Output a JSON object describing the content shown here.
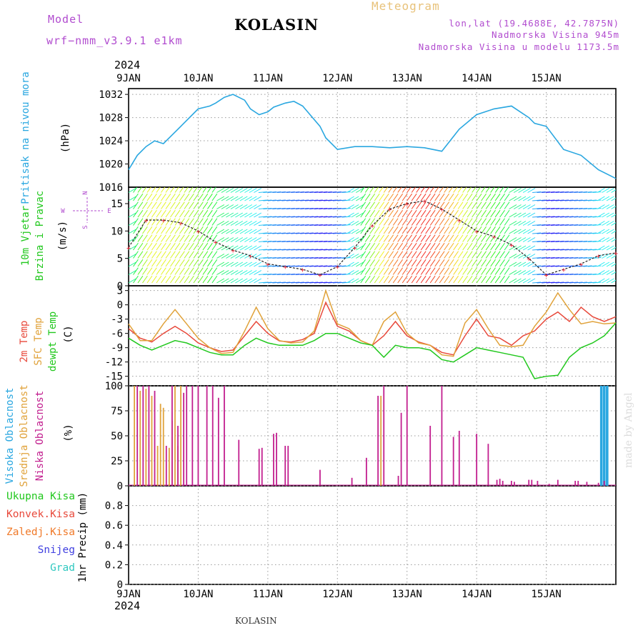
{
  "header": {
    "model_label": "Model",
    "model_name": "wrf−nmm_v3.9.1  e1km",
    "station": "KOLASIN",
    "meteogram_label": "Meteogram",
    "lonlat": "lon,lat (19.4688E, 42.7875N)",
    "elevation": "Nadmorska Visina 945m",
    "model_elevation": "Nadmorska Visina u modelu 1173.5m"
  },
  "footer": {
    "station": "KOLASIN",
    "watermark": "made by Angel"
  },
  "time_axis": {
    "year": "2024",
    "ticks": [
      "9JAN",
      "10JAN",
      "11JAN",
      "12JAN",
      "13JAN",
      "14JAN",
      "15JAN"
    ]
  },
  "colors": {
    "pressure": "#2aa7e0",
    "temp2m": "#e8493b",
    "sfc": "#e0a23a",
    "dewpt": "#22c81e",
    "cloud_high": "#2aa7e0",
    "cloud_mid": "#e0a23a",
    "cloud_low": "#c21f8f",
    "precip_total": "#22c81e",
    "precip_conv": "#e8493b",
    "precip_frz": "#f07a2a",
    "snow": "#4040e0",
    "graupel": "#30c8c0",
    "wind_dir_label": "#b14ccf"
  },
  "chart_data": [
    {
      "type": "line",
      "panel": "pressure",
      "ylabel": [
        "Pritisak na nivou mora",
        "(hPa)"
      ],
      "ylim": [
        1016,
        1033
      ],
      "yticks": [
        1020,
        1024,
        1028,
        1032
      ],
      "ytick_partial": "1016",
      "x_unit": "hours since 9JAN 00UTC",
      "series": [
        {
          "x": [
            0,
            3,
            6,
            9,
            12,
            18,
            24,
            28,
            30,
            33,
            36,
            40,
            42,
            45,
            48,
            50,
            54,
            57,
            60,
            66,
            68,
            72,
            78,
            84,
            90,
            96,
            102,
            108,
            114,
            120,
            126,
            132,
            138,
            140,
            144,
            150,
            156,
            162,
            168
          ],
          "values": [
            1019,
            1021.5,
            1023,
            1024,
            1023.5,
            1026.5,
            1029.5,
            1030,
            1030.5,
            1031.5,
            1032,
            1031,
            1029.5,
            1028.5,
            1029,
            1029.8,
            1030.5,
            1030.8,
            1030,
            1026.5,
            1024.5,
            1022.5,
            1023,
            1023,
            1022.8,
            1023,
            1022.8,
            1022.2,
            1026,
            1028.5,
            1029.5,
            1030,
            1028,
            1027,
            1026.5,
            1022.5,
            1021.5,
            1019,
            1017.5
          ]
        }
      ]
    },
    {
      "type": "scatter",
      "panel": "wind",
      "ylabel": [
        "10m Vjetar",
        "Brzina i Pravac",
        "(m/s)"
      ],
      "ylim": [
        0,
        18
      ],
      "yticks": [
        0,
        5,
        10,
        15
      ],
      "direction_legend": [
        "N",
        "E",
        "W",
        "S"
      ],
      "series": [
        {
          "x": [
            0,
            6,
            12,
            18,
            24,
            30,
            36,
            42,
            48,
            54,
            60,
            66,
            72,
            78,
            84,
            90,
            96,
            102,
            108,
            114,
            120,
            126,
            132,
            138,
            144,
            150,
            156,
            162,
            168
          ],
          "values": [
            7,
            12,
            12,
            11.5,
            10,
            8,
            6.5,
            5.5,
            4,
            3.5,
            3,
            2,
            3.5,
            7,
            11,
            14,
            15,
            15.5,
            14,
            12,
            10,
            9,
            7.5,
            5,
            2,
            3,
            4,
            5.5,
            6
          ]
        }
      ]
    },
    {
      "type": "line",
      "panel": "temperature",
      "ylabel": [
        "2m Temp",
        "SFC Temp",
        "dewpt Temp",
        "(C)"
      ],
      "ylim": [
        -17,
        4
      ],
      "yticks": [
        3,
        0,
        -3,
        -6,
        -9,
        -12,
        -15
      ],
      "x": [
        0,
        4,
        8,
        12,
        16,
        20,
        24,
        28,
        32,
        36,
        40,
        44,
        48,
        52,
        56,
        60,
        64,
        68,
        72,
        76,
        80,
        84,
        88,
        92,
        96,
        100,
        104,
        108,
        112,
        116,
        120,
        124,
        128,
        132,
        136,
        140,
        144,
        148,
        152,
        156,
        160,
        164,
        168
      ],
      "series": [
        {
          "name": "2m Temp",
          "values": [
            -5,
            -7,
            -7.8,
            -6,
            -4.5,
            -6,
            -8,
            -9,
            -9.8,
            -9.5,
            -6.5,
            -3.5,
            -6,
            -7.6,
            -7.8,
            -7.3,
            -6,
            0.5,
            -4.5,
            -5.5,
            -7.5,
            -8.5,
            -6.5,
            -3.5,
            -6.5,
            -7.8,
            -8.5,
            -10,
            -10.5,
            -6.5,
            -3,
            -6.5,
            -7,
            -8.5,
            -6.5,
            -5.5,
            -3,
            -1.5,
            -3.5,
            -0.5,
            -2.5,
            -3.5,
            -2.5
          ]
        },
        {
          "name": "SFC Temp",
          "values": [
            -4,
            -7.5,
            -7.5,
            -4,
            -1,
            -4,
            -7,
            -9,
            -10.2,
            -10,
            -5.5,
            -0.5,
            -5,
            -7.5,
            -8,
            -7.8,
            -5.5,
            3,
            -4,
            -5,
            -7.5,
            -8.5,
            -3.5,
            -1.5,
            -6,
            -8,
            -8.5,
            -10.5,
            -10.8,
            -3.8,
            -1,
            -5,
            -8.5,
            -8.8,
            -8.5,
            -4.5,
            -1.5,
            2.5,
            -1,
            -4,
            -3.5,
            -4,
            -3.8
          ]
        },
        {
          "name": "dewpt Temp",
          "values": [
            -7,
            -8.5,
            -9.5,
            -8.5,
            -7.5,
            -8,
            -9,
            -10,
            -10.5,
            -10.5,
            -8.5,
            -7,
            -8,
            -8.5,
            -8.5,
            -8.5,
            -7.5,
            -6,
            -6,
            -7,
            -8,
            -8.5,
            -11,
            -8.5,
            -9,
            -9,
            -9.5,
            -11.5,
            -12,
            -10.5,
            -9,
            -9.5,
            -10,
            -10.5,
            -11,
            -15.5,
            -15,
            -14.8,
            -11,
            -9,
            -8,
            -6.5,
            -3.8
          ]
        }
      ]
    },
    {
      "type": "bar",
      "panel": "clouds",
      "ylabel": [
        "Visoka Oblacnost",
        "Srednja Oblacnost",
        "Niska Oblacnost",
        "(%)"
      ],
      "ylim": [
        0,
        100
      ],
      "yticks": [
        0,
        25,
        50,
        75,
        100
      ],
      "series": [
        {
          "name": "Visoka Oblacnost",
          "x": [
            163,
            164,
            165
          ],
          "values": [
            100,
            100,
            100
          ]
        },
        {
          "name": "Srednja Oblacnost",
          "x": [
            2,
            4,
            6,
            8,
            10,
            11,
            12,
            14,
            15,
            16,
            17,
            18,
            87
          ],
          "values": [
            100,
            95,
            97,
            90,
            40,
            82,
            78,
            38,
            65,
            100,
            40,
            100,
            90
          ]
        },
        {
          "name": "Niska Oblacnost",
          "x": [
            3,
            5,
            7,
            9,
            13,
            15,
            17,
            19,
            20,
            22,
            24,
            27,
            29,
            31,
            33,
            38,
            45,
            46,
            50,
            51,
            54,
            55,
            66,
            77,
            82,
            86,
            88,
            93,
            94,
            96,
            104,
            108,
            112,
            114,
            120,
            124,
            127,
            128,
            129,
            132,
            133,
            138,
            139,
            141,
            145,
            148,
            154,
            155,
            158,
            162,
            164
          ],
          "values": [
            100,
            100,
            100,
            95,
            40,
            100,
            60,
            93,
            100,
            100,
            100,
            100,
            100,
            88,
            100,
            46,
            37,
            38,
            52,
            53,
            40,
            40,
            16,
            8,
            28,
            90,
            100,
            10,
            73,
            100,
            60,
            100,
            49,
            55,
            52,
            42,
            6,
            7,
            5,
            5,
            4,
            6,
            6,
            5,
            2,
            6,
            5,
            5,
            4,
            3,
            5
          ]
        }
      ]
    },
    {
      "type": "bar",
      "panel": "precip",
      "ylabel": [
        "1hr Precip (mm)"
      ],
      "ylim": [
        0,
        1
      ],
      "yticks": [
        0,
        0.2,
        0.4,
        0.6,
        0.8
      ],
      "series": [
        {
          "name": "Ukupna  Kisa",
          "values": []
        },
        {
          "name": "Konvek.Kisa",
          "values": []
        },
        {
          "name": "Zaledj.Kisa",
          "values": []
        },
        {
          "name": "Snijeg",
          "values": []
        },
        {
          "name": "Grad",
          "values": []
        }
      ]
    }
  ]
}
